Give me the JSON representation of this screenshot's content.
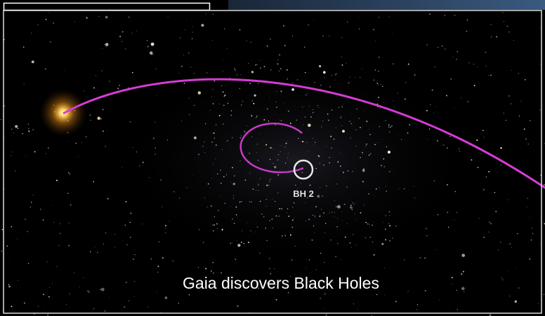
{
  "image": {
    "marker_label": "BH 2",
    "caption": "Gaia discovers Black Holes"
  }
}
